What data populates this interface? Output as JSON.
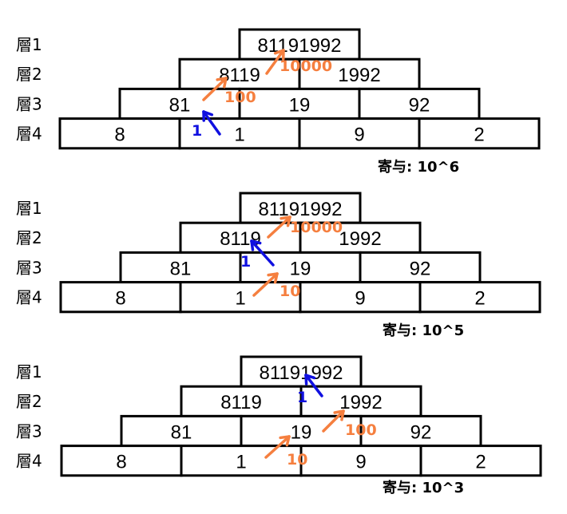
{
  "colors": {
    "orange": "#f57f3f",
    "blue": "#1010e0",
    "border": "#000000"
  },
  "layer_labels": [
    "層1",
    "層2",
    "層3",
    "層4"
  ],
  "diagrams": [
    {
      "caption": "寄与: 10^6",
      "rows": [
        [
          "81191992"
        ],
        [
          "8119",
          "1992"
        ],
        [
          "81",
          "19",
          "92"
        ],
        [
          "8",
          "1",
          "9",
          "2"
        ]
      ],
      "annotations": [
        {
          "text": "1",
          "color": "blue"
        },
        {
          "text": "100",
          "color": "orange"
        },
        {
          "text": "10000",
          "color": "orange"
        }
      ]
    },
    {
      "caption": "寄与: 10^5",
      "rows": [
        [
          "81191992"
        ],
        [
          "8119",
          "1992"
        ],
        [
          "81",
          "19",
          "92"
        ],
        [
          "8",
          "1",
          "9",
          "2"
        ]
      ],
      "annotations": [
        {
          "text": "10",
          "color": "orange"
        },
        {
          "text": "1",
          "color": "blue"
        },
        {
          "text": "10000",
          "color": "orange"
        }
      ]
    },
    {
      "caption": "寄与: 10^3",
      "rows": [
        [
          "81191992"
        ],
        [
          "8119",
          "1992"
        ],
        [
          "81",
          "19",
          "92"
        ],
        [
          "8",
          "1",
          "9",
          "2"
        ]
      ],
      "annotations": [
        {
          "text": "10",
          "color": "orange"
        },
        {
          "text": "100",
          "color": "orange"
        },
        {
          "text": "1",
          "color": "blue"
        }
      ]
    }
  ]
}
